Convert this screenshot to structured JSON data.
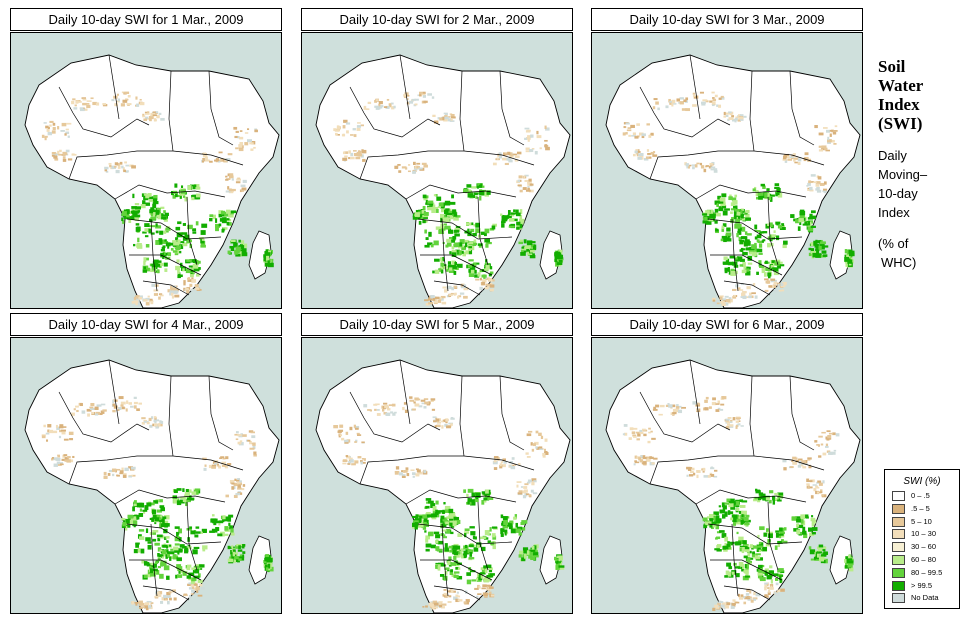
{
  "panels": [
    {
      "title": "Daily 10-day SWI for  1 Mar., 2009"
    },
    {
      "title": "Daily 10-day SWI for  2 Mar., 2009"
    },
    {
      "title": "Daily 10-day SWI for  3 Mar., 2009"
    },
    {
      "title": "Daily 10-day SWI for  4 Mar., 2009"
    },
    {
      "title": "Daily 10-day SWI for  5 Mar., 2009"
    },
    {
      "title": "Daily 10-day SWI for  6 Mar., 2009"
    }
  ],
  "sidebar": {
    "heading": [
      "Soil",
      "Water",
      "Index",
      "(SWI)"
    ],
    "desc": [
      "Daily",
      "Moving–",
      "10-day",
      "Index"
    ],
    "units": [
      "(% of",
      "WHC)"
    ]
  },
  "legend": {
    "title": "SWI (%)",
    "items": [
      {
        "label": "0 – .5",
        "color": "#ffffff"
      },
      {
        "label": ".5 – 5",
        "color": "#d9b27c"
      },
      {
        "label": "5 – 10",
        "color": "#e6c89a"
      },
      {
        "label": "10 – 30",
        "color": "#f2deba"
      },
      {
        "label": "30 – 60",
        "color": "#f7f0d4"
      },
      {
        "label": "60 – 80",
        "color": "#b8ec8a"
      },
      {
        "label": "80 – 99.5",
        "color": "#62d33c"
      },
      {
        "label": "> 99.5",
        "color": "#12ad00"
      },
      {
        "label": "No Data",
        "color": "#cfdcdb"
      }
    ]
  },
  "colors": {
    "ocean": "#cfe0dc",
    "land": "#ffffff",
    "border": "#000000"
  }
}
